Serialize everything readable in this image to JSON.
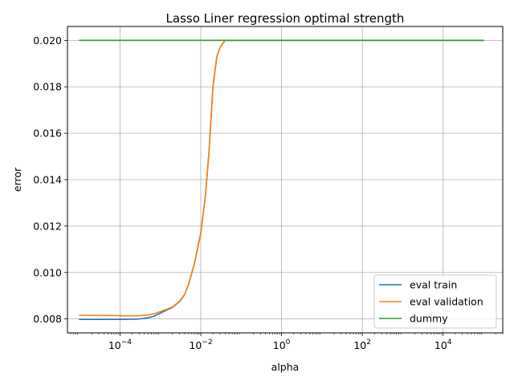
{
  "chart_data": {
    "type": "line",
    "title": "Lasso Liner regression optimal strength",
    "xlabel": "alpha",
    "ylabel": "error",
    "xscale": "log",
    "xlim": [
      5e-06,
      300000
    ],
    "ylim": [
      0.0074,
      0.0206
    ],
    "grid": true,
    "legend_position": "lower-right",
    "x_ticks": [
      {
        "value": 0.0001,
        "base": "10",
        "exp": "−4"
      },
      {
        "value": 0.01,
        "base": "10",
        "exp": "−2"
      },
      {
        "value": 1,
        "base": "10",
        "exp": "0"
      },
      {
        "value": 100,
        "base": "10",
        "exp": "2"
      },
      {
        "value": 10000,
        "base": "10",
        "exp": "4"
      }
    ],
    "y_ticks": [
      {
        "value": 0.008,
        "label": "0.008"
      },
      {
        "value": 0.01,
        "label": "0.010"
      },
      {
        "value": 0.012,
        "label": "0.012"
      },
      {
        "value": 0.014,
        "label": "0.014"
      },
      {
        "value": 0.016,
        "label": "0.016"
      },
      {
        "value": 0.018,
        "label": "0.018"
      },
      {
        "value": 0.02,
        "label": "0.020"
      }
    ],
    "series": [
      {
        "name": "eval train",
        "color": "#1f77b4",
        "x": [
          1e-05,
          5e-05,
          0.0001,
          0.0002,
          0.0003,
          0.0005,
          0.0007,
          0.001,
          0.0015,
          0.002,
          0.003,
          0.004,
          0.005,
          0.007,
          0.01,
          0.013,
          0.016,
          0.02,
          0.025,
          0.03,
          0.04,
          0.05,
          1,
          100,
          100000
        ],
        "y": [
          0.00798,
          0.00798,
          0.00798,
          0.00799,
          0.008,
          0.00805,
          0.00812,
          0.00825,
          0.0084,
          0.0085,
          0.00875,
          0.00905,
          0.0095,
          0.0104,
          0.0117,
          0.0133,
          0.0152,
          0.018,
          0.0193,
          0.0197,
          0.02,
          0.02,
          0.02,
          0.02,
          0.02
        ]
      },
      {
        "name": "eval validation",
        "color": "#ff7f0e",
        "x": [
          1e-05,
          5e-05,
          0.0001,
          0.0002,
          0.0003,
          0.0005,
          0.0007,
          0.001,
          0.0015,
          0.002,
          0.003,
          0.004,
          0.005,
          0.007,
          0.01,
          0.013,
          0.016,
          0.02,
          0.025,
          0.03,
          0.04,
          0.05,
          1,
          100,
          100000
        ],
        "y": [
          0.00816,
          0.00815,
          0.00814,
          0.00813,
          0.00814,
          0.00817,
          0.00822,
          0.00832,
          0.00843,
          0.00852,
          0.00877,
          0.00906,
          0.0095,
          0.0104,
          0.0117,
          0.0133,
          0.0152,
          0.018,
          0.0193,
          0.0197,
          0.02,
          0.02,
          0.02,
          0.02,
          0.02
        ]
      },
      {
        "name": "dummy",
        "color": "#2ca02c",
        "x": [
          1e-05,
          100000
        ],
        "y": [
          0.02,
          0.02
        ]
      }
    ]
  }
}
